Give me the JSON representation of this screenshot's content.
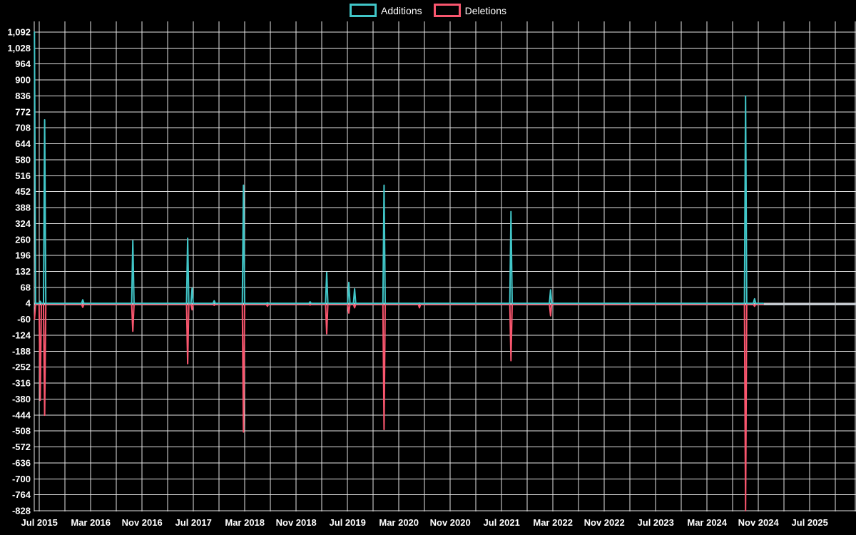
{
  "chart_data": {
    "type": "line",
    "legend": [
      {
        "label": "Additions",
        "color": "#41c6c8"
      },
      {
        "label": "Deletions",
        "color": "#f9566e"
      }
    ],
    "colors": {
      "background": "#000000",
      "grid": "#e4e4e4",
      "axis_line": "#c6cbd1",
      "text": "#ffffff"
    },
    "y_axis": {
      "min": -828,
      "max": 1092,
      "tick_step": 64,
      "ticks": [
        1092,
        1028,
        964,
        900,
        836,
        772,
        708,
        644,
        580,
        516,
        452,
        388,
        324,
        260,
        196,
        132,
        68,
        4,
        -60,
        -124,
        -188,
        -252,
        -316,
        -380,
        -444,
        -508,
        -572,
        -636,
        -700,
        -764,
        -828
      ]
    },
    "x_axis": {
      "grid_step_months": 4,
      "ticks": [
        {
          "label": "Jul 2015",
          "m": 0
        },
        {
          "label": "Mar 2016",
          "m": 8
        },
        {
          "label": "Nov 2016",
          "m": 16
        },
        {
          "label": "Jul 2017",
          "m": 24
        },
        {
          "label": "Mar 2018",
          "m": 32
        },
        {
          "label": "Nov 2018",
          "m": 40
        },
        {
          "label": "Jul 2019",
          "m": 48
        },
        {
          "label": "Mar 2020",
          "m": 56
        },
        {
          "label": "Nov 2020",
          "m": 64
        },
        {
          "label": "Jul 2021",
          "m": 72
        },
        {
          "label": "Mar 2022",
          "m": 80
        },
        {
          "label": "Nov 2022",
          "m": 88
        },
        {
          "label": "Jul 2023",
          "m": 96
        },
        {
          "label": "Mar 2024",
          "m": 104
        },
        {
          "label": "Nov 2024",
          "m": 112
        },
        {
          "label": "Jul 2025",
          "m": 120
        }
      ]
    },
    "baselines": {
      "additions": 4,
      "deletions": 0
    },
    "line_end": "2024-11-24",
    "events": [
      {
        "date": "2015-06-08",
        "additions": 1092,
        "deletions": -60
      },
      {
        "date": "2015-07-05",
        "additions": 12,
        "deletions": -385
      },
      {
        "date": "2015-07-26",
        "additions": 740,
        "deletions": -445
      },
      {
        "date": "2016-01-24",
        "additions": 18,
        "deletions": -12
      },
      {
        "date": "2016-09-18",
        "additions": 255,
        "deletions": -108
      },
      {
        "date": "2017-06-04",
        "additions": 265,
        "deletions": -238
      },
      {
        "date": "2017-06-25",
        "additions": 65,
        "deletions": -22
      },
      {
        "date": "2017-10-08",
        "additions": 14,
        "deletions": -4
      },
      {
        "date": "2018-02-25",
        "additions": 478,
        "deletions": -512
      },
      {
        "date": "2018-06-17",
        "additions": 6,
        "deletions": -8
      },
      {
        "date": "2019-01-06",
        "additions": 10,
        "deletions": -3
      },
      {
        "date": "2019-03-24",
        "additions": 128,
        "deletions": -118
      },
      {
        "date": "2019-07-07",
        "additions": 88,
        "deletions": -35
      },
      {
        "date": "2019-08-04",
        "additions": 62,
        "deletions": -14
      },
      {
        "date": "2019-12-22",
        "additions": 478,
        "deletions": -502
      },
      {
        "date": "2020-06-07",
        "additions": 5,
        "deletions": -14
      },
      {
        "date": "2021-08-15",
        "additions": 372,
        "deletions": -226
      },
      {
        "date": "2022-02-20",
        "additions": 58,
        "deletions": -46
      },
      {
        "date": "2024-09-01",
        "additions": 836,
        "deletions": -828
      },
      {
        "date": "2024-10-13",
        "additions": 22,
        "deletions": -8
      }
    ]
  }
}
